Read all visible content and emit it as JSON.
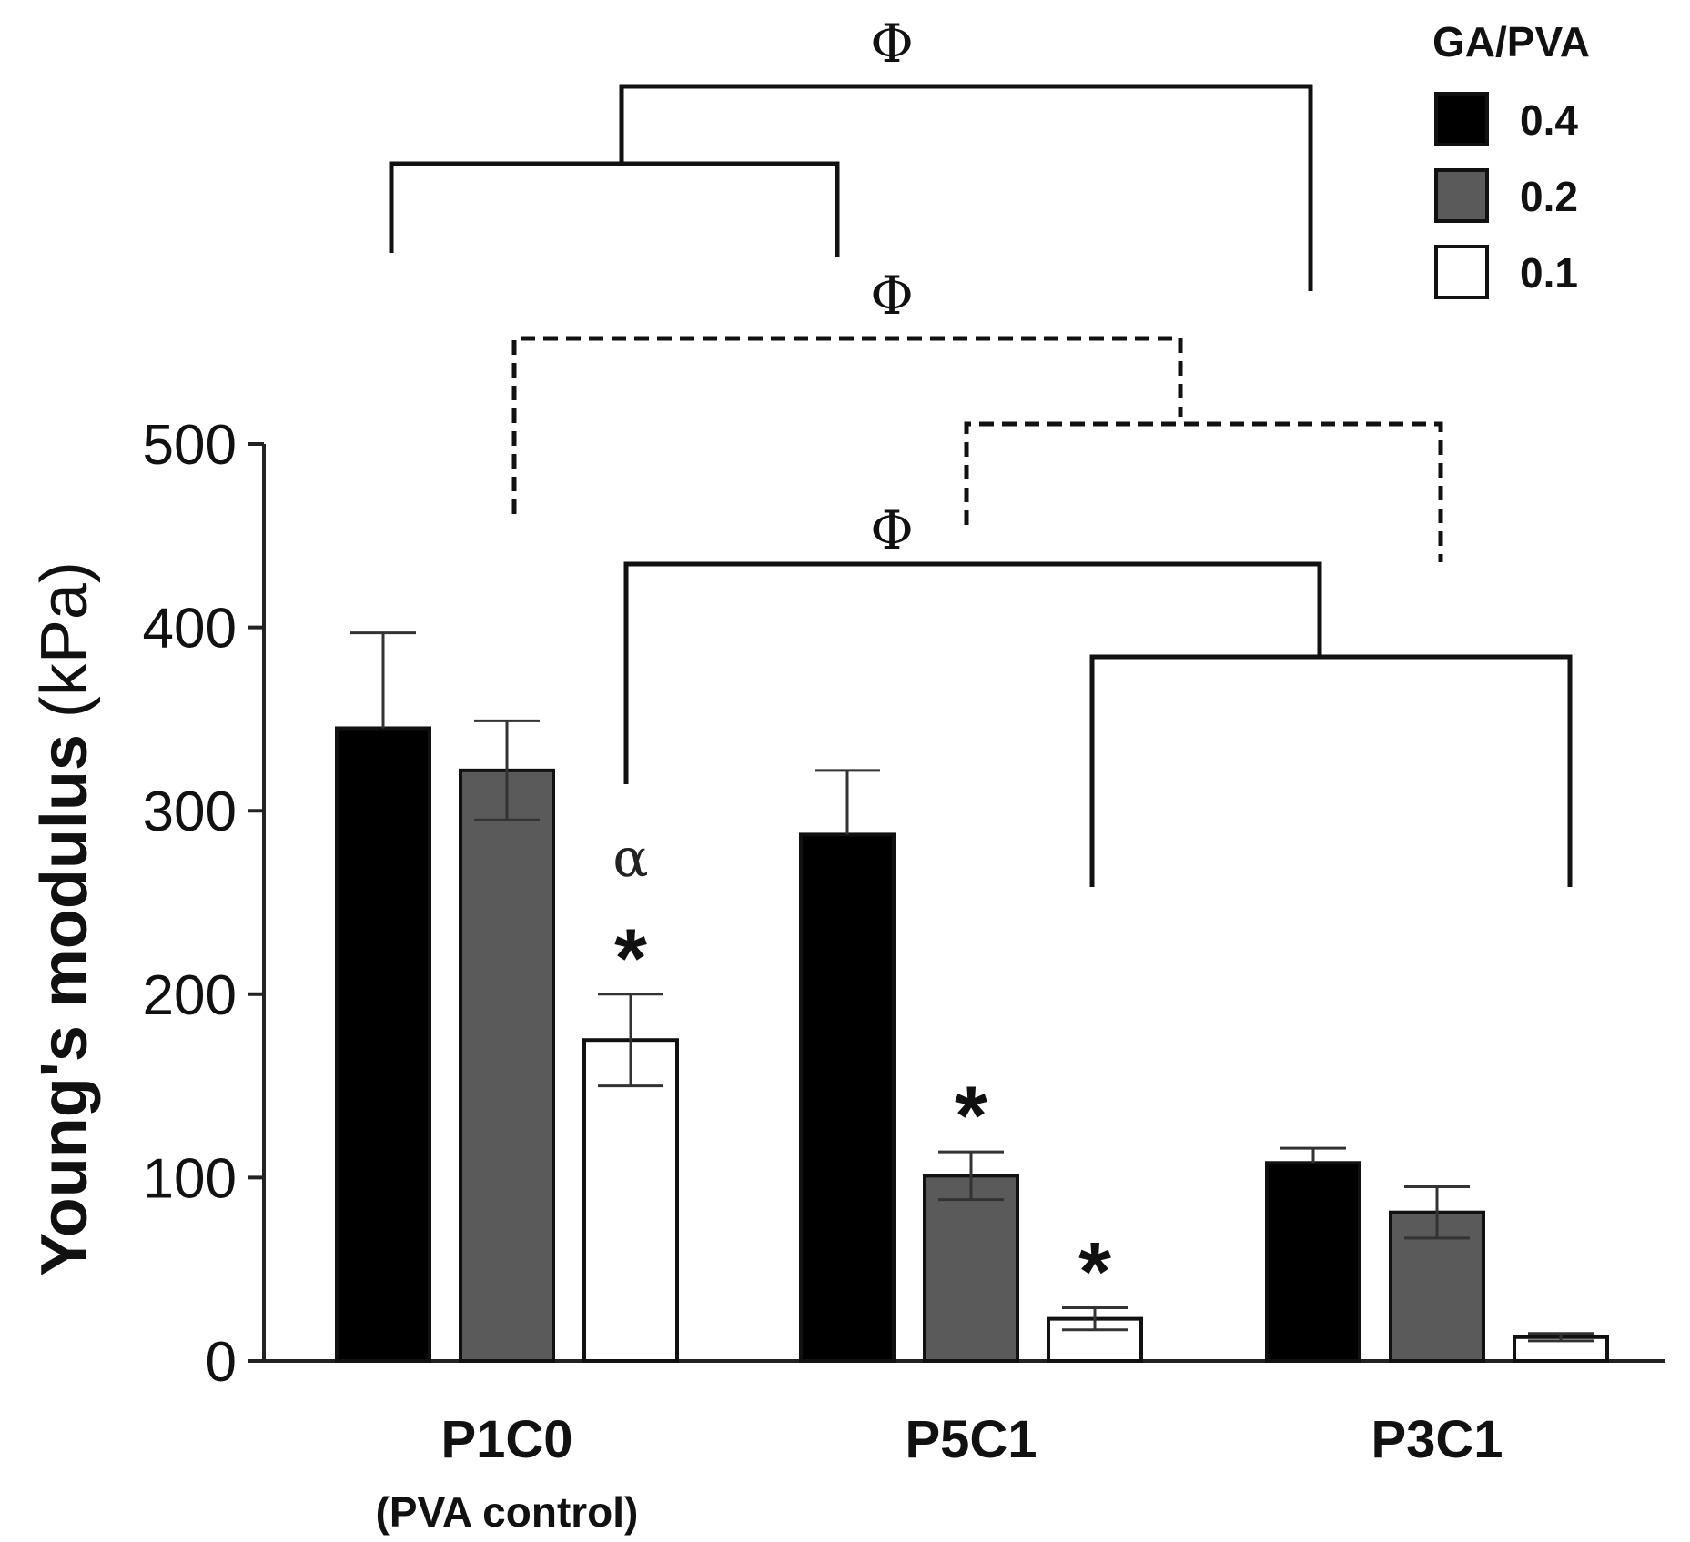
{
  "chart_data": {
    "type": "bar",
    "title": "",
    "xlabel": "",
    "ylabel": "Young's modulus (kPa)",
    "ylabel_parts": {
      "bold": "Young's modulus",
      "unit": "(kPa)"
    },
    "ylim": [
      0,
      500
    ],
    "yticks": [
      0,
      100,
      200,
      300,
      400,
      500
    ],
    "categories": [
      "P1C0",
      "P5C1",
      "P3C1"
    ],
    "category_sublabels": [
      "(PVA control)",
      "",
      ""
    ],
    "legend": {
      "title": "GA/PVA",
      "position": "top-right"
    },
    "series": [
      {
        "name": "0.4",
        "color": "#000000",
        "values": [
          345,
          287,
          108
        ],
        "errors": [
          52,
          35,
          8
        ]
      },
      {
        "name": "0.2",
        "color": "#5a5a5a",
        "values": [
          322,
          101,
          81
        ],
        "errors": [
          27,
          13,
          14
        ]
      },
      {
        "name": "0.1",
        "color": "#ffffff",
        "values": [
          175,
          23,
          13
        ],
        "errors": [
          25,
          6,
          2
        ]
      }
    ],
    "annotations": {
      "phi_symbol": "Φ",
      "alpha_symbol": "α",
      "star_symbol": "*",
      "stars": [
        {
          "category": 0,
          "series": 2
        },
        {
          "category": 1,
          "series": 1
        },
        {
          "category": 1,
          "series": 2
        }
      ],
      "alphas": [
        {
          "category": 0,
          "series": 2
        }
      ],
      "brackets": [
        {
          "style": "solid",
          "left_group": [
            0,
            1
          ],
          "right_group": [
            2,
            2
          ],
          "series": 0,
          "label": "Φ"
        },
        {
          "style": "dashed",
          "left_group": [
            0,
            0
          ],
          "right_group": [
            1,
            2
          ],
          "series": 1,
          "label": "Φ"
        },
        {
          "style": "solid",
          "left_group": [
            0,
            0
          ],
          "right_group": [
            1,
            2
          ],
          "series": 2,
          "label": "Φ"
        }
      ]
    }
  }
}
